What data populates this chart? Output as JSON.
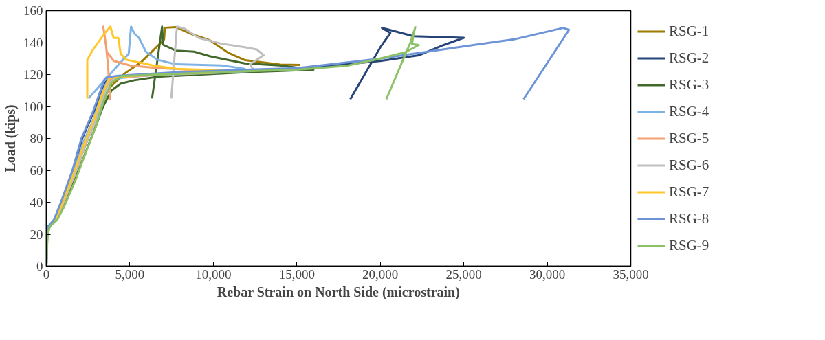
{
  "chart_data": {
    "type": "line",
    "xlabel": "Rebar Strain on North Side (microstrain)",
    "ylabel": "Load (kips)",
    "xlim": [
      0,
      35000
    ],
    "ylim": [
      0,
      160
    ],
    "xticks": [
      0,
      {
        "value": 5000,
        "label": "5,000"
      },
      {
        "value": 10000,
        "label": "10,000"
      },
      {
        "value": 15000,
        "label": "15,000"
      },
      {
        "value": 20000,
        "label": "20,000"
      },
      {
        "value": 25000,
        "label": "25,000"
      },
      {
        "value": 30000,
        "label": "30,000"
      },
      {
        "value": 35000,
        "label": "35,000"
      }
    ],
    "yticks": [
      0,
      20,
      40,
      60,
      80,
      100,
      120,
      140,
      160
    ],
    "grid": false,
    "legend": "right",
    "marker": "none",
    "line_style": "solid",
    "series": [
      {
        "name": "RSG-1",
        "color": "#9e7b00",
        "x": [
          150,
          500,
          1000,
          1600,
          2200,
          2800,
          3300,
          3600,
          3900,
          4700,
          5700,
          6800,
          7050,
          7100,
          7750,
          8600,
          9800,
          10900,
          11900,
          14000,
          15200
        ],
        "values": [
          25,
          29,
          38,
          55,
          72,
          88,
          100,
          108,
          113,
          120.7,
          128,
          139.3,
          142,
          149.3,
          149.7,
          145.7,
          141.4,
          133.6,
          129,
          126.2,
          126
        ]
      },
      {
        "name": "RSG-2",
        "color": "#264478",
        "x": [
          0,
          30,
          120,
          500,
          900,
          1600,
          2150,
          2850,
          3500,
          3700,
          6000,
          10000,
          15000,
          20000,
          22300,
          23800,
          25000,
          22000,
          20400,
          20100,
          20600,
          20000,
          18200
        ],
        "values": [
          0,
          20,
          25,
          29,
          40,
          60,
          80,
          97,
          114,
          118,
          119.5,
          121,
          123.5,
          128.5,
          132,
          138.5,
          143,
          144,
          148.4,
          149.2,
          146,
          137,
          104.5
        ]
      },
      {
        "name": "RSG-3",
        "color": "#43682b",
        "x": [
          0,
          60,
          200,
          600,
          1000,
          1700,
          2300,
          2900,
          3400,
          3900,
          4450,
          5270,
          6650,
          11880,
          16000,
          13970,
          11880,
          9820,
          8850,
          7750,
          7000,
          6930,
          6330
        ],
        "values": [
          0,
          20,
          25,
          29,
          37,
          54,
          70,
          86,
          100,
          110,
          114.3,
          116.4,
          118.6,
          121.4,
          123,
          125.7,
          127,
          131.4,
          134.3,
          135,
          138.6,
          150,
          105
        ]
      },
      {
        "name": "RSG-4",
        "color": "#7fb2e5",
        "x": [
          0,
          40,
          150,
          500,
          900,
          1600,
          2200,
          2850,
          3400,
          3700,
          6000,
          10000,
          12000,
          11880,
          10500,
          7750,
          6650,
          5960,
          5550,
          5270,
          5070,
          4930,
          4590,
          3620,
          2520
        ],
        "values": [
          0,
          20,
          25,
          29,
          39,
          58,
          77,
          93,
          110,
          117,
          119.5,
          121,
          122,
          123.6,
          125.7,
          126.4,
          129.3,
          134.3,
          142.9,
          145.7,
          150,
          132.9,
          129.3,
          118,
          105
        ]
      },
      {
        "name": "RSG-5",
        "color": "#f4a071",
        "x": [
          null,
          550,
          950,
          1650,
          2250,
          2900,
          3300,
          3600,
          4000,
          9000,
          10000,
          9130,
          6380,
          5000,
          4030,
          3620,
          3410,
          3550,
          3700,
          3760,
          3830
        ],
        "values": [
          null,
          29,
          38,
          56,
          74,
          90,
          105,
          113,
          118,
          121.5,
          122,
          122.6,
          124.3,
          125.7,
          128.6,
          134.3,
          150,
          140,
          125,
          112.9,
          104.3
        ]
      },
      {
        "name": "RSG-6",
        "color": "#bfbfbf",
        "x": [
          0,
          50,
          170,
          550,
          950,
          1650,
          2250,
          2900,
          3350,
          3700,
          4200,
          8000,
          12400,
          12190,
          13020,
          12600,
          11880,
          10500,
          9130,
          8300,
          7820,
          7480
        ],
        "values": [
          0,
          20,
          25,
          29,
          38,
          56,
          74,
          90,
          104,
          114,
          118.5,
          121,
          123,
          126.4,
          132.1,
          135.7,
          137.1,
          139.3,
          142.9,
          148.6,
          150,
          105
        ]
      },
      {
        "name": "RSG-7",
        "color": "#ffc729",
        "x": [
          160,
          520,
          950,
          1600,
          2200,
          2850,
          3350,
          3800,
          6000,
          11000,
          10500,
          7750,
          6380,
          5410,
          4790,
          4450,
          4310,
          4030,
          3830,
          3480,
          2800,
          2450,
          2450
        ],
        "values": [
          25,
          29,
          39,
          57,
          75,
          92,
          108,
          118,
          119.8,
          121.5,
          122.6,
          123.6,
          125.7,
          127.9,
          129.3,
          132.9,
          142.9,
          142.9,
          150,
          145.7,
          135.7,
          129.3,
          105
        ]
      },
      {
        "name": "RSG-8",
        "color": "#6e94d8",
        "x": [
          0,
          30,
          110,
          450,
          870,
          1560,
          2100,
          2800,
          3480,
          3620,
          4310,
          7750,
          11880,
          15000,
          20000,
          25580,
          28000,
          30950,
          31300,
          28580
        ],
        "values": [
          0,
          20,
          25,
          29,
          40,
          60,
          80,
          97,
          117,
          118.3,
          119.3,
          121.4,
          123,
          124,
          130,
          138.5,
          142,
          149.2,
          148,
          104.5
        ]
      },
      {
        "name": "RSG-9",
        "color": "#8cc168",
        "x": [
          0,
          70,
          220,
          650,
          1050,
          1750,
          2350,
          2950,
          3450,
          3900,
          4500,
          8000,
          12000,
          15000,
          18000,
          20000,
          21500,
          22300,
          21900,
          22000,
          22100,
          21800,
          20360
        ],
        "values": [
          0,
          20,
          25,
          29,
          37,
          54,
          71,
          87,
          104,
          115,
          119,
          120.5,
          122,
          123,
          125.5,
          130,
          134,
          138.5,
          139,
          146,
          149.7,
          140,
          104.5
        ]
      }
    ]
  }
}
